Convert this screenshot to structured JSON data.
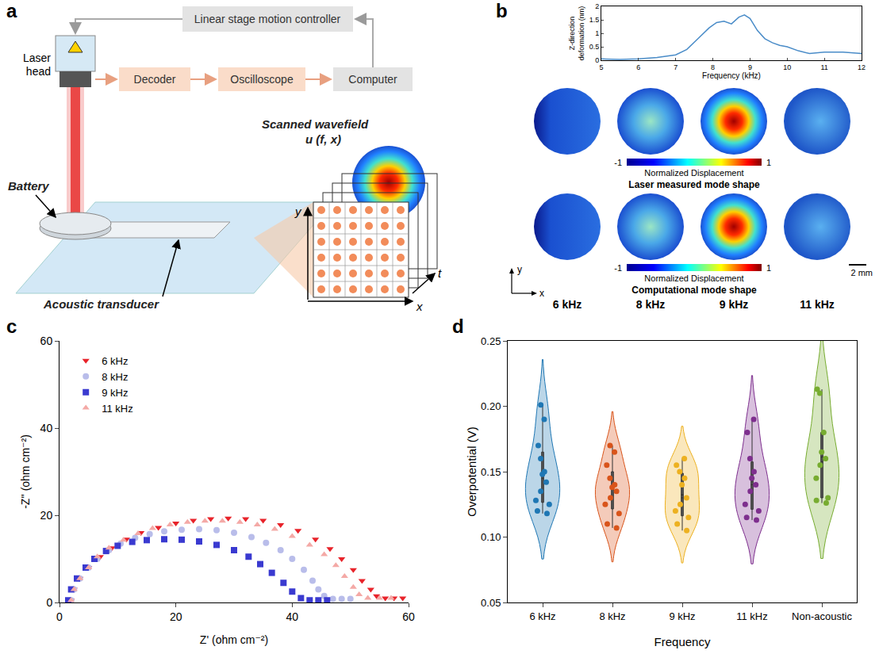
{
  "panel_labels": [
    "a",
    "b",
    "c",
    "d"
  ],
  "diagram": {
    "controller": "Linear stage motion controller",
    "laser_head": "Laser head",
    "chain": [
      "Decoder",
      "Oscilloscope",
      "Computer"
    ],
    "battery": "Battery",
    "transducer": "Acoustic transducer",
    "wavefield_title": "Scanned wavefield",
    "wavefield_symbol": "u (f, x)",
    "axes": [
      "x",
      "y",
      "t"
    ]
  },
  "mode_shapes": {
    "frequencies": [
      "6 kHz",
      "8 kHz",
      "9 kHz",
      "11 kHz"
    ],
    "rows": [
      "Laser measured mode shape",
      "Computational mode shape"
    ],
    "colorbar": {
      "title": "Normalized Displacement",
      "range": [
        -1,
        1
      ],
      "ticks": [
        -1,
        1
      ]
    },
    "scale_bar": "2 mm",
    "axes": [
      "x",
      "y"
    ]
  },
  "chart_data": [
    {
      "type": "line",
      "x": [
        5,
        5.5,
        6,
        6.5,
        7,
        7.3,
        7.6,
        7.9,
        8.1,
        8.3,
        8.5,
        8.7,
        8.85,
        9,
        9.2,
        9.4,
        9.6,
        9.8,
        10,
        10.3,
        10.6,
        11,
        11.5,
        12
      ],
      "values": [
        0.05,
        0.03,
        0.05,
        0.1,
        0.2,
        0.4,
        0.8,
        1.2,
        1.4,
        1.45,
        1.35,
        1.6,
        1.68,
        1.55,
        1.1,
        0.8,
        0.65,
        0.55,
        0.5,
        0.35,
        0.25,
        0.3,
        0.3,
        0.25
      ],
      "color": "#4a8cc8",
      "x_label": "Frequency (kHz)",
      "y_label": "Z-direction deformation (nm)",
      "xlim": [
        5,
        12
      ],
      "xticks": [
        5,
        6,
        7,
        8,
        9,
        10,
        11,
        12
      ],
      "ylim": [
        0,
        2
      ],
      "yticks": [
        0,
        0.5,
        1,
        1.5,
        2
      ]
    },
    {
      "type": "scatter",
      "x_label": "Z' (ohm cm⁻²)",
      "y_label": "-Z'' (ohm cm⁻²)",
      "xlim": [
        0,
        60
      ],
      "xticks": [
        0,
        20,
        40,
        60
      ],
      "ylim": [
        0,
        60
      ],
      "yticks": [
        0,
        20,
        40,
        60
      ],
      "legend": "top-left",
      "series": [
        {
          "name": "6 kHz",
          "color": "#e8232a",
          "marker": "triangle-down",
          "x": [
            2,
            2.5,
            3.5,
            5,
            7,
            9,
            11.5,
            14,
            17,
            20,
            23,
            26,
            29,
            32,
            35,
            38,
            41,
            44,
            46.5,
            48.5,
            50.5,
            52,
            53.5,
            54.5,
            56,
            57.5,
            59
          ],
          "values": [
            0.5,
            3,
            5.5,
            8,
            10.5,
            12.5,
            14.5,
            16,
            17.2,
            18.2,
            18.8,
            19.2,
            19.3,
            19.2,
            18.8,
            17.8,
            16.5,
            14.5,
            12.3,
            10,
            7.5,
            5,
            3,
            1.5,
            1,
            1,
            1
          ]
        },
        {
          "name": "8 kHz",
          "color": "#b9bdea",
          "marker": "circle",
          "x": [
            2,
            2.5,
            3.5,
            5,
            6.5,
            8.5,
            10.5,
            13,
            15.5,
            18,
            21,
            24,
            27,
            30,
            33,
            35.5,
            38,
            40,
            42,
            43.5,
            44.5,
            45.5,
            47,
            48.5,
            50
          ],
          "values": [
            0.5,
            3,
            5.5,
            8,
            10,
            12,
            13.5,
            14.8,
            15.7,
            16.3,
            16.7,
            16.8,
            16.6,
            16,
            15,
            13.7,
            12,
            10,
            7.5,
            5,
            3,
            1.5,
            0.8,
            0.8,
            0.8
          ]
        },
        {
          "name": "9 kHz",
          "color": "#3a3ad0",
          "marker": "square",
          "x": [
            1.5,
            2,
            3,
            4.5,
            6,
            8,
            10,
            12.5,
            15,
            18,
            21,
            24,
            27,
            30,
            32.5,
            34.5,
            36.5,
            38.5,
            40,
            41.5,
            43,
            44.5,
            46
          ],
          "values": [
            0.5,
            3,
            5.5,
            8,
            10,
            11.8,
            13,
            13.9,
            14.3,
            14.5,
            14.4,
            14,
            13.2,
            12,
            10.5,
            8.8,
            6.8,
            4.5,
            2.5,
            1,
            0.5,
            0.5,
            0.5
          ]
        },
        {
          "name": "11 kHz",
          "color": "#f4a9a6",
          "marker": "triangle-up",
          "x": [
            2,
            2.5,
            3.5,
            5,
            6.5,
            8.5,
            11,
            13.5,
            16,
            19,
            22,
            25,
            28,
            31,
            34,
            37,
            40,
            43,
            45.5,
            47.5,
            49,
            50.5,
            51.5,
            53,
            55,
            57
          ],
          "values": [
            0.5,
            3,
            5.5,
            8,
            10.5,
            12.5,
            14.3,
            15.8,
            17,
            17.8,
            18.4,
            18.7,
            18.7,
            18.4,
            17.8,
            16.8,
            15.2,
            13.2,
            11,
            8.5,
            6,
            3.5,
            1.8,
            1,
            1,
            1
          ]
        }
      ]
    },
    {
      "type": "violin",
      "x_label": "Frequency",
      "y_label": "Overpotential (V)",
      "categories": [
        "6 kHz",
        "8 kHz",
        "9 kHz",
        "11 kHz",
        "Non-acoustic"
      ],
      "colors": [
        "#1f77b4",
        "#d9541a",
        "#edb120",
        "#7e2f8e",
        "#77ac30"
      ],
      "values": [
        [
          0.201,
          0.19,
          0.17,
          0.16,
          0.15,
          0.148,
          0.142,
          0.135,
          0.128,
          0.125,
          0.12,
          0.118
        ],
        [
          0.17,
          0.165,
          0.155,
          0.145,
          0.14,
          0.138,
          0.135,
          0.13,
          0.125,
          0.118,
          0.11,
          0.107
        ],
        [
          0.16,
          0.155,
          0.15,
          0.145,
          0.14,
          0.13,
          0.125,
          0.12,
          0.115,
          0.11,
          0.105
        ],
        [
          0.19,
          0.18,
          0.16,
          0.15,
          0.145,
          0.14,
          0.135,
          0.125,
          0.12,
          0.115,
          0.113
        ],
        [
          0.213,
          0.21,
          0.18,
          0.165,
          0.16,
          0.155,
          0.145,
          0.13,
          0.128,
          0.126
        ]
      ],
      "ylim": [
        0.05,
        0.25
      ],
      "yticks": [
        {
          "value": 0.05,
          "label": "0.05"
        },
        {
          "value": 0.1,
          "label": "0.10"
        },
        {
          "value": 0.15,
          "label": "0.15"
        },
        {
          "value": 0.2,
          "label": "0.20"
        },
        {
          "value": 0.25,
          "label": "0.25"
        }
      ]
    }
  ]
}
